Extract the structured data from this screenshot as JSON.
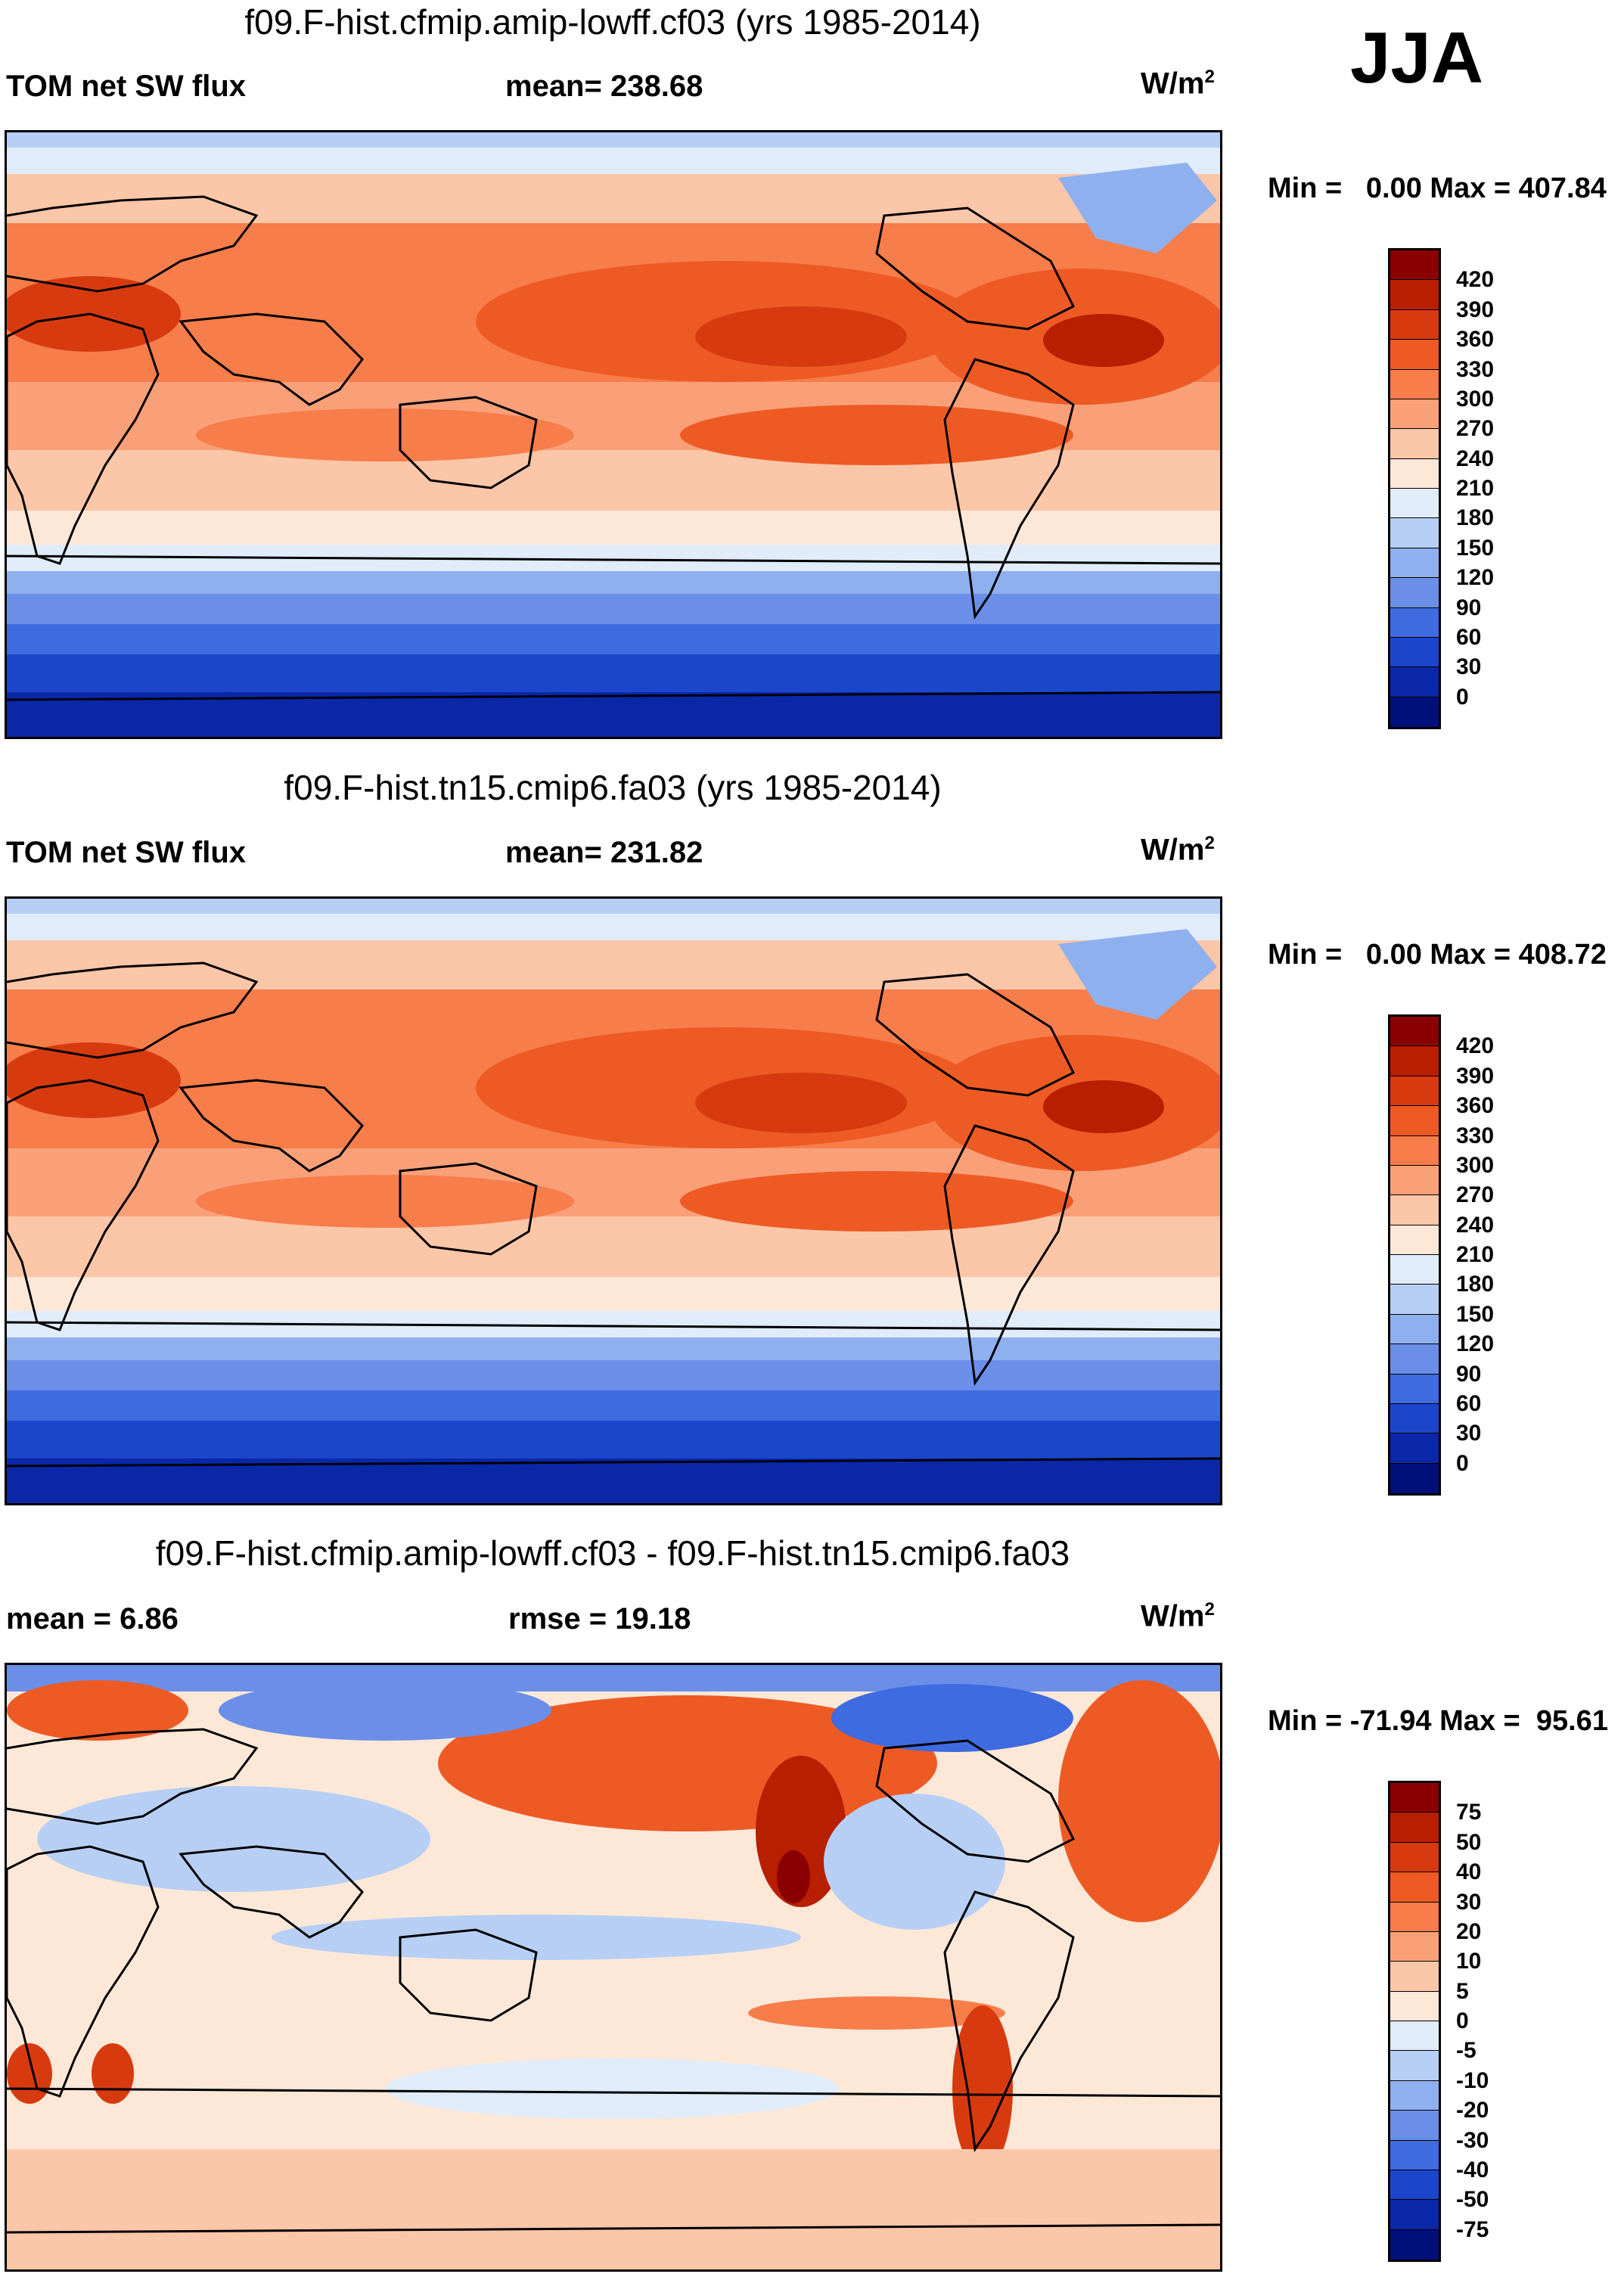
{
  "season": "JJA",
  "panels": [
    {
      "title": "f09.F-hist.cfmip.amip-lowff.cf03 (yrs 1985-2014)",
      "left_label": "TOM net SW flux",
      "center_label": "mean= 238.68",
      "units_base": "W/m",
      "units_exp": "2",
      "min_label": "Min =",
      "min_value": "0.00",
      "max_label": "Max =",
      "max_value": "407.84",
      "colorbar": {
        "labels": [
          "420",
          "390",
          "360",
          "330",
          "300",
          "270",
          "240",
          "210",
          "180",
          "150",
          "120",
          "90",
          "60",
          "30",
          "0"
        ],
        "colors": [
          "#8a0000",
          "#b81e00",
          "#d83a10",
          "#ee5a24",
          "#f77d4a",
          "#f9a079",
          "#fcc6a8",
          "#fde8d8",
          "#e0ecfa",
          "#b7cff4",
          "#8fb0ee",
          "#6b8fe8",
          "#3f6be0",
          "#1b46cc",
          "#0a27a8",
          "#00107a"
        ]
      },
      "kind": "sw"
    },
    {
      "title": "f09.F-hist.tn15.cmip6.fa03 (yrs 1985-2014)",
      "left_label": "TOM net SW flux",
      "center_label": "mean= 231.82",
      "units_base": "W/m",
      "units_exp": "2",
      "min_label": "Min =",
      "min_value": "0.00",
      "max_label": "Max =",
      "max_value": "408.72",
      "colorbar": {
        "labels": [
          "420",
          "390",
          "360",
          "330",
          "300",
          "270",
          "240",
          "210",
          "180",
          "150",
          "120",
          "90",
          "60",
          "30",
          "0"
        ],
        "colors": [
          "#8a0000",
          "#b81e00",
          "#d83a10",
          "#ee5a24",
          "#f77d4a",
          "#f9a079",
          "#fcc6a8",
          "#fde8d8",
          "#e0ecfa",
          "#b7cff4",
          "#8fb0ee",
          "#6b8fe8",
          "#3f6be0",
          "#1b46cc",
          "#0a27a8",
          "#00107a"
        ]
      },
      "kind": "sw"
    },
    {
      "title": "f09.F-hist.cfmip.amip-lowff.cf03 - f09.F-hist.tn15.cmip6.fa03",
      "left_label": "mean =   6.86",
      "center_label": "rmse =  19.18",
      "units_base": "W/m",
      "units_exp": "2",
      "min_label": "Min =",
      "min_value": "-71.94",
      "max_label": "Max =",
      "max_value": "95.61",
      "colorbar": {
        "labels": [
          "75",
          "50",
          "40",
          "30",
          "20",
          "10",
          "5",
          "0",
          "-5",
          "-10",
          "-20",
          "-30",
          "-40",
          "-50",
          "-75"
        ],
        "colors": [
          "#8a0000",
          "#b81e00",
          "#d83a10",
          "#ee5a24",
          "#f77d4a",
          "#f9a079",
          "#fcc6a8",
          "#fde8d8",
          "#e0ecfa",
          "#b7cff4",
          "#8fb0ee",
          "#6b8fe8",
          "#3f6be0",
          "#1b46cc",
          "#0a27a8",
          "#00107a"
        ]
      },
      "kind": "diff"
    }
  ]
}
